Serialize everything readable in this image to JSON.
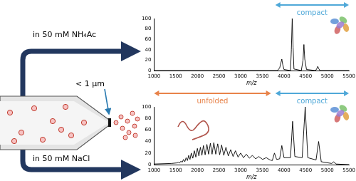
{
  "diagram": {
    "top_condition": "in 50 mM NH₄Ac",
    "bottom_condition": "in 50 mM NaCl",
    "tip_label": "< 1 µm"
  },
  "chart_data": [
    {
      "type": "line",
      "x_label": "m/z",
      "color": "#000000",
      "grid": false,
      "xlim": [
        1000,
        5500
      ],
      "xticks": [
        1000,
        1500,
        2000,
        2500,
        3000,
        3500,
        4000,
        4500,
        5000,
        5500
      ],
      "ylim": [
        0,
        100
      ],
      "yticks": [
        0,
        20,
        40,
        60,
        80,
        100
      ],
      "x": [
        1000,
        3850,
        3900,
        3930,
        3950,
        3970,
        4000,
        4150,
        4170,
        4190,
        4210,
        4230,
        4400,
        4440,
        4460,
        4480,
        4520,
        4730,
        4760,
        4780,
        4800,
        4830,
        5500
      ],
      "values": [
        0,
        0,
        5,
        15,
        22,
        12,
        2,
        0,
        40,
        100,
        45,
        3,
        0,
        20,
        50,
        22,
        2,
        0,
        4,
        8,
        4,
        0,
        0
      ],
      "annotations": [
        {
          "text": "compact",
          "x_range": [
            3800,
            5500
          ],
          "color": "#4fa8d8"
        }
      ]
    },
    {
      "type": "line",
      "x_label": "m/z",
      "color": "#000000",
      "grid": false,
      "xlim": [
        1000,
        5500
      ],
      "xticks": [
        1000,
        1500,
        2000,
        2500,
        3000,
        3500,
        4000,
        4500,
        5000,
        5500
      ],
      "ylim": [
        0,
        100
      ],
      "yticks": [
        0,
        20,
        40,
        60,
        80,
        100
      ],
      "x": [
        1000,
        1400,
        1530,
        1560,
        1590,
        1620,
        1650,
        1680,
        1710,
        1740,
        1770,
        1800,
        1830,
        1860,
        1895,
        1930,
        1965,
        2000,
        2035,
        2070,
        2105,
        2140,
        2180,
        2220,
        2260,
        2300,
        2340,
        2380,
        2425,
        2470,
        2515,
        2560,
        2610,
        2660,
        2715,
        2770,
        2825,
        2880,
        2940,
        3000,
        3065,
        3130,
        3200,
        3270,
        3345,
        3420,
        3505,
        3590,
        3680,
        3730,
        3780,
        3830,
        3900,
        3950,
        4000,
        4150,
        4200,
        4250,
        4420,
        4490,
        4550,
        4740,
        4800,
        4860,
        5100,
        5150,
        5200,
        5500
      ],
      "values": [
        1,
        2,
        3,
        4,
        3,
        6,
        4,
        9,
        5,
        12,
        7,
        16,
        9,
        20,
        11,
        24,
        13,
        28,
        15,
        30,
        16,
        33,
        17,
        35,
        18,
        37,
        18,
        38,
        18,
        36,
        17,
        34,
        16,
        30,
        15,
        26,
        14,
        24,
        13,
        20,
        12,
        18,
        11,
        16,
        10,
        14,
        9,
        12,
        8,
        7,
        20,
        9,
        10,
        33,
        12,
        12,
        75,
        14,
        12,
        100,
        12,
        8,
        40,
        5,
        2,
        5,
        1,
        0
      ],
      "annotations": [
        {
          "text": "unfolded",
          "x_range": [
            1000,
            3700
          ],
          "color": "#e8834a"
        },
        {
          "text": "compact",
          "x_range": [
            3800,
            5500
          ],
          "color": "#4fa8d8"
        }
      ]
    }
  ]
}
